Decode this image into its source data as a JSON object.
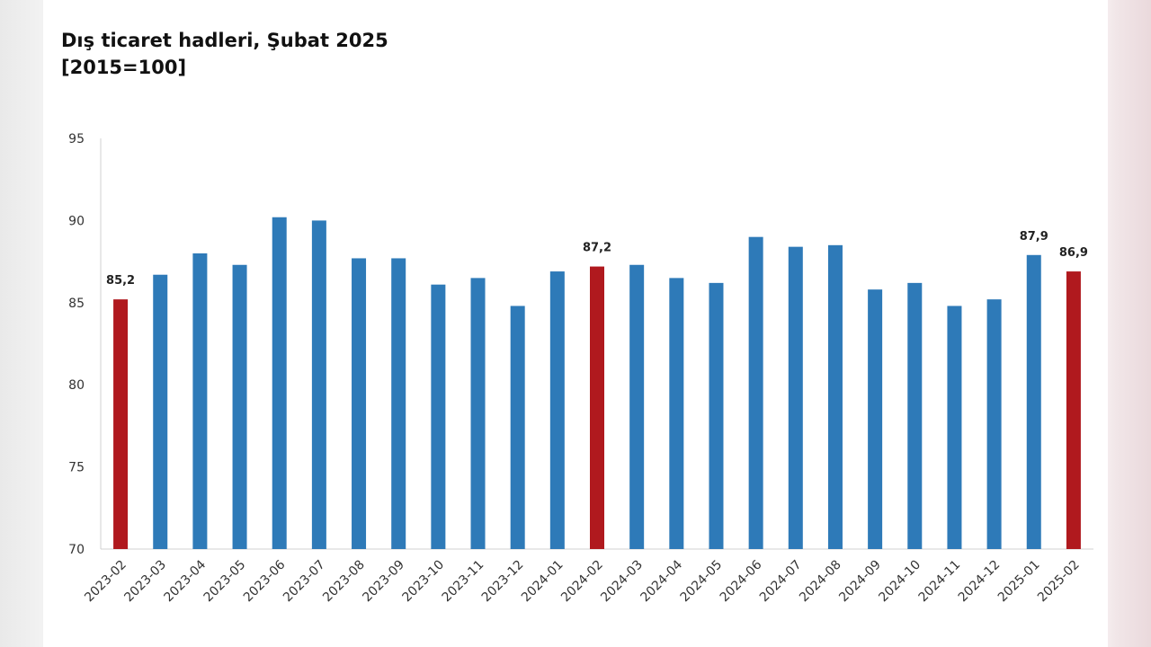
{
  "chart_data": {
    "type": "bar",
    "title": "Dış ticaret hadleri, Şubat 2025",
    "subtitle": "[2015=100]",
    "xlabel": "",
    "ylabel": "",
    "ylim": [
      70,
      95
    ],
    "yticks": [
      95,
      90,
      85,
      80,
      75,
      70
    ],
    "grid": false,
    "categories": [
      "2023-02",
      "2023-03",
      "2023-04",
      "2023-05",
      "2023-06",
      "2023-07",
      "2023-08",
      "2023-09",
      "2023-10",
      "2023-11",
      "2023-12",
      "2024-01",
      "2024-02",
      "2024-03",
      "2024-04",
      "2024-05",
      "2024-06",
      "2024-07",
      "2024-08",
      "2024-09",
      "2024-10",
      "2024-11",
      "2024-12",
      "2025-01",
      "2025-02"
    ],
    "values": [
      85.2,
      86.7,
      88.0,
      87.3,
      90.2,
      90.0,
      87.7,
      87.7,
      86.1,
      86.5,
      84.8,
      86.9,
      87.2,
      87.3,
      86.5,
      86.2,
      89.0,
      88.4,
      88.5,
      85.8,
      86.2,
      84.8,
      85.2,
      87.9,
      86.9
    ],
    "highlighted": [
      0,
      12,
      24
    ],
    "data_labels": [
      {
        "index": 0,
        "text": "85,2"
      },
      {
        "index": 12,
        "text": "87,2"
      },
      {
        "index": 23,
        "text": "87,9"
      },
      {
        "index": 24,
        "text": "86,9"
      }
    ],
    "colors": {
      "default": "#2e7ab8",
      "highlight": "#b0191e",
      "axis": "#d0d0d0"
    }
  }
}
